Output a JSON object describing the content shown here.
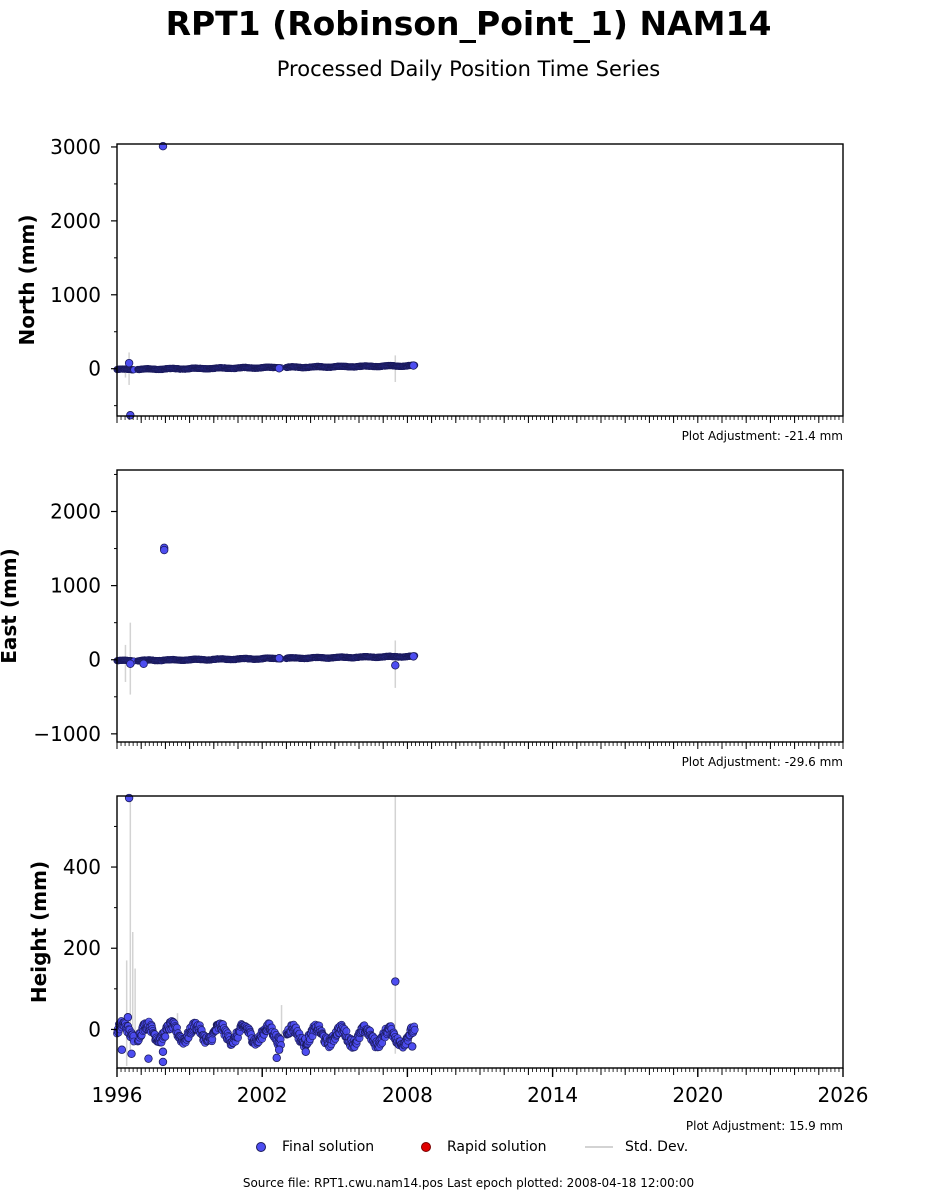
{
  "header": {
    "title": "RPT1 (Robinson_Point_1) NAM14",
    "subtitle": "Processed Daily Position Time Series"
  },
  "legend": {
    "final_label": "Final solution",
    "rapid_label": "Rapid solution",
    "std_label": "Std. Dev."
  },
  "footer": {
    "source": "Source file: RPT1.cwu.nam14.pos  Last epoch plotted: 2008-04-18 12:00:00"
  },
  "colors": {
    "final": "#4d4df0",
    "final_edge": "#1a1a5a",
    "rapid": "#e00000",
    "std": "#d3d3d3"
  },
  "chart_data": [
    {
      "type": "scatter",
      "ylabel": "North (mm)",
      "adjustment": "Plot Adjustment: -21.4 mm",
      "xlim": [
        1996,
        2026
      ],
      "ylim": [
        -640,
        3040
      ],
      "yticks": [
        0,
        1000,
        2000,
        3000
      ],
      "ytick_labels": [
        "0",
        "1000",
        "2000",
        "3000"
      ],
      "xtick_labels_visible": false,
      "trend": {
        "start": [
          1996.0,
          -12
        ],
        "end": [
          2008.3,
          40
        ],
        "amplitude": 6
      },
      "outliers": [
        [
          1997.9,
          3010
        ],
        [
          1996.55,
          -630
        ],
        [
          1996.5,
          75
        ],
        [
          2002.7,
          5
        ],
        [
          2008.25,
          42
        ]
      ],
      "stddev_bars": [
        [
          1996.35,
          -120,
          20
        ],
        [
          1996.5,
          -220,
          220
        ],
        [
          2007.5,
          -180,
          180
        ]
      ]
    },
    {
      "type": "scatter",
      "ylabel": "East (mm)",
      "adjustment": "Plot Adjustment: -29.6 mm",
      "xlim": [
        1996,
        2026
      ],
      "ylim": [
        -1110,
        2560
      ],
      "yticks": [
        -1000,
        0,
        1000,
        2000
      ],
      "ytick_labels": [
        "−1000",
        "0",
        "1000",
        "2000"
      ],
      "xtick_labels_visible": false,
      "trend": {
        "start": [
          1996.0,
          -15
        ],
        "end": [
          2008.3,
          45
        ],
        "amplitude": 6
      },
      "outliers": [
        [
          1997.95,
          1510
        ],
        [
          1997.95,
          1480
        ],
        [
          1997.1,
          -55
        ],
        [
          1996.55,
          -55
        ],
        [
          2007.5,
          -75
        ],
        [
          2002.7,
          20
        ],
        [
          2008.25,
          45
        ]
      ],
      "stddev_bars": [
        [
          1996.35,
          -300,
          200
        ],
        [
          1996.55,
          -470,
          500
        ],
        [
          2007.5,
          -380,
          260
        ]
      ]
    },
    {
      "type": "scatter",
      "ylabel": "Height (mm)",
      "adjustment": "Plot Adjustment: 15.9 mm",
      "xlim": [
        1996,
        2026
      ],
      "ylim": [
        -95,
        575
      ],
      "yticks": [
        0,
        200,
        400
      ],
      "ytick_labels": [
        "0",
        "200",
        "400"
      ],
      "xticks": [
        1996,
        2002,
        2008,
        2014,
        2020,
        2026
      ],
      "xtick_labels": [
        "1996",
        "2002",
        "2008",
        "2014",
        "2020",
        "2026"
      ],
      "xtick_labels_visible": true,
      "trend": {
        "start": [
          1996.0,
          -5
        ],
        "end": [
          2008.3,
          -20
        ],
        "amplitude": 18
      },
      "outliers": [
        [
          1996.5,
          570
        ],
        [
          2007.5,
          118
        ],
        [
          1996.45,
          30
        ],
        [
          1996.2,
          -50
        ],
        [
          1996.6,
          -60
        ],
        [
          1997.9,
          -80
        ],
        [
          1997.3,
          -72
        ],
        [
          1997.9,
          -55
        ],
        [
          2002.6,
          -70
        ],
        [
          2002.7,
          -50
        ],
        [
          2003.8,
          -55
        ],
        [
          2008.2,
          -42
        ]
      ],
      "stddev_bars": [
        [
          1996.4,
          -90,
          170
        ],
        [
          1996.55,
          -60,
          570
        ],
        [
          1996.65,
          -40,
          240
        ],
        [
          1996.75,
          -30,
          150
        ],
        [
          2002.8,
          -60,
          60
        ],
        [
          2007.5,
          -60,
          575
        ],
        [
          1998.5,
          -30,
          40
        ]
      ]
    }
  ]
}
